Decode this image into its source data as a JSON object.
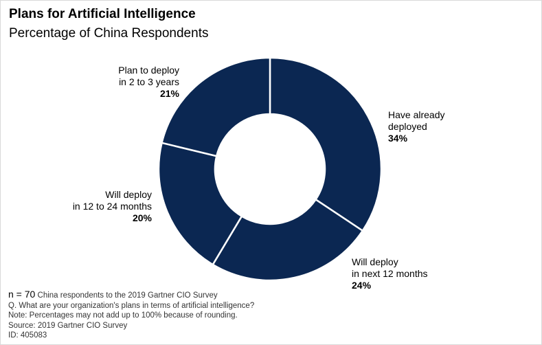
{
  "header": {
    "title": "Plans for Artificial Intelligence",
    "subtitle": "Percentage of China Respondents"
  },
  "chart_data": {
    "type": "pie",
    "variant": "donut",
    "title": "Plans for Artificial Intelligence",
    "subtitle": "Percentage of China Respondents",
    "color": "#0b2752",
    "slices": [
      {
        "label": "Have already\ndeployed",
        "value": 34,
        "display": "34%"
      },
      {
        "label": "Will deploy\nin next 12 months",
        "value": 24,
        "display": "24%"
      },
      {
        "label": "Will deploy\nin 12 to 24 months",
        "value": 20,
        "display": "20%"
      },
      {
        "label": "Plan to deploy\nin 2 to 3 years",
        "value": 21,
        "display": "21%"
      }
    ]
  },
  "footnotes": {
    "n_prefix": "n = 70",
    "n_rest": " China respondents to the 2019 Gartner CIO Survey",
    "question": "Q. What are your organization's plans in terms of artificial intelligence?",
    "note": "Note: Percentages may not add up to 100% because of rounding.",
    "source": "Source: 2019 Gartner CIO Survey",
    "id": "ID: 405083"
  }
}
